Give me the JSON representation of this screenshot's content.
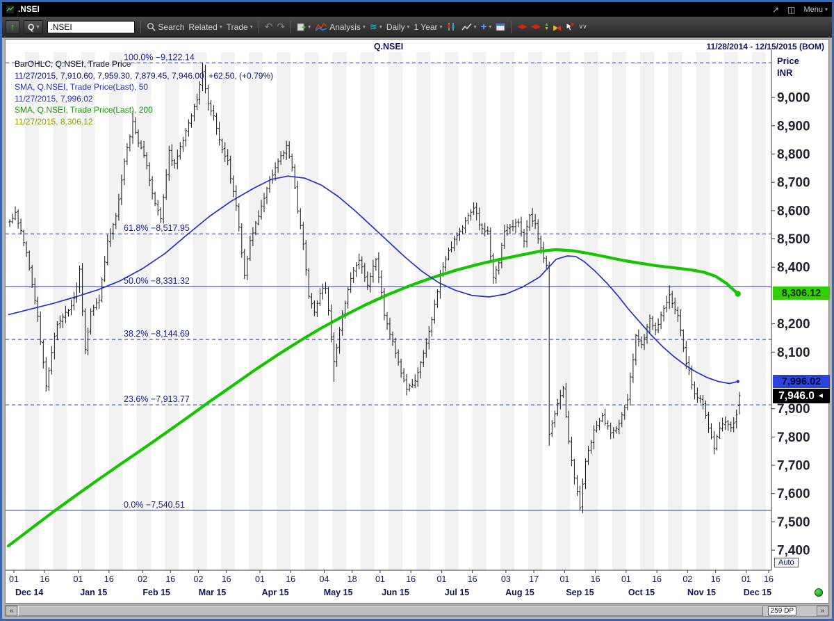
{
  "window": {
    "title": ".NSEI",
    "menu_label": "Menu"
  },
  "toolbar": {
    "quote_type": "Q",
    "symbol_value": ".NSEI",
    "search_label": "Search",
    "related_label": "Related",
    "trade_label": "Trade",
    "analysis_label": "Analysis",
    "interval_value": "Daily",
    "range_value": "1 Year"
  },
  "chart_header": {
    "symbol": "Q.NSEI",
    "date_range": "11/28/2014 - 12/15/2015 (BOM)"
  },
  "legend": [
    {
      "text": "BarOHLC, Q.NSEI, Trade Price",
      "color": "#101010"
    },
    {
      "text": "11/27/2015, 7,910.60, 7,959.30, 7,879.45, 7,946.00, +62.50, (+0.79%)",
      "color": "#10107a"
    },
    {
      "text": "SMA, Q.NSEI, Trade Price(Last), 50",
      "color": "#2431c8"
    },
    {
      "text": "11/27/2015, 7,996.02",
      "color": "#2431c8"
    },
    {
      "text": "SMA, Q.NSEI, Trade Price(Last), 200",
      "color": "#0fa000"
    },
    {
      "text": "11/27/2015, 8,306.12",
      "color": "#8f9c00"
    }
  ],
  "price_axis": {
    "title": "Price",
    "currency": "INR",
    "auto_label": "Auto",
    "ticks": [
      {
        "label": "9,000",
        "p": 9000
      },
      {
        "label": "8,900",
        "p": 8900
      },
      {
        "label": "8,800",
        "p": 8800
      },
      {
        "label": "8,700",
        "p": 8700
      },
      {
        "label": "8,600",
        "p": 8600
      },
      {
        "label": "8,500",
        "p": 8500
      },
      {
        "label": "8,400",
        "p": 8400
      },
      {
        "label": "8,200",
        "p": 8200
      },
      {
        "label": "8,100",
        "p": 8100
      },
      {
        "label": "7,900",
        "p": 7900
      },
      {
        "label": "7,800",
        "p": 7800
      },
      {
        "label": "7,700",
        "p": 7700
      },
      {
        "label": "7,600",
        "p": 7600
      },
      {
        "label": "7,500",
        "p": 7500
      },
      {
        "label": "7,400",
        "p": 7400
      }
    ],
    "boxes": [
      {
        "value": "8,306.12",
        "p": 8306.12,
        "bg": "#35cc0a",
        "fg": "#06300a"
      },
      {
        "value": "7,996.02",
        "p": 7996.02,
        "bg": "#2c42dd",
        "fg": "#000a30"
      },
      {
        "value": "7,946.0",
        "p": 7946.0,
        "bg": "#000000",
        "fg": "#ffffff",
        "arrow": "◄"
      }
    ]
  },
  "x_axis": {
    "ticks": [
      {
        "label": "01",
        "d": 2
      },
      {
        "label": "16",
        "d": 13
      },
      {
        "label": "01",
        "d": 25
      },
      {
        "label": "16",
        "d": 36
      },
      {
        "label": "02",
        "d": 48
      },
      {
        "label": "16",
        "d": 58
      },
      {
        "label": "02",
        "d": 68
      },
      {
        "label": "16",
        "d": 78
      },
      {
        "label": "01",
        "d": 90
      },
      {
        "label": "16",
        "d": 101
      },
      {
        "label": "04",
        "d": 113
      },
      {
        "label": "18",
        "d": 123
      },
      {
        "label": "01",
        "d": 133
      },
      {
        "label": "16",
        "d": 144
      },
      {
        "label": "01",
        "d": 155
      },
      {
        "label": "16",
        "d": 166
      },
      {
        "label": "03",
        "d": 178
      },
      {
        "label": "17",
        "d": 188
      },
      {
        "label": "01",
        "d": 199
      },
      {
        "label": "16",
        "d": 210
      },
      {
        "label": "01",
        "d": 221
      },
      {
        "label": "16",
        "d": 232
      },
      {
        "label": "02",
        "d": 243
      },
      {
        "label": "16",
        "d": 253
      },
      {
        "label": "01",
        "d": 264
      },
      {
        "label": "16",
        "d": 272
      }
    ],
    "months": [
      {
        "label": "Dec 14",
        "d": 7.5
      },
      {
        "label": "Jan 15",
        "d": 30.5
      },
      {
        "label": "Feb 15",
        "d": 53
      },
      {
        "label": "Mar 15",
        "d": 73
      },
      {
        "label": "Apr 15",
        "d": 95.5
      },
      {
        "label": "May 15",
        "d": 118
      },
      {
        "label": "Jun 15",
        "d": 138.5
      },
      {
        "label": "Jul 15",
        "d": 160.5
      },
      {
        "label": "Aug 15",
        "d": 183
      },
      {
        "label": "Sep 15",
        "d": 204.5
      },
      {
        "label": "Oct 15",
        "d": 226.5
      },
      {
        "label": "Nov 15",
        "d": 248
      },
      {
        "label": "Dec 15",
        "d": 268
      }
    ]
  },
  "scrollbar": {
    "dp_label": "259 DP"
  },
  "chart_data": {
    "type": "ohlc",
    "symbol": "Q.NSEI",
    "x_range": "11/28/2014 - 12/15/2015",
    "ylim": [
      7329,
      9160
    ],
    "x_days": 273,
    "bar_days": 261,
    "last_bar": {
      "date": "11/27/2015",
      "open": 7910.6,
      "high": 7959.3,
      "low": 7879.45,
      "close": 7946.0,
      "change": 62.5,
      "change_pct": 0.79
    },
    "fib_levels": [
      {
        "display": "100.0% −9,122.14",
        "pct": 100.0,
        "price": 9122.14,
        "style": "dashed"
      },
      {
        "display": "61.8% −8,517.95",
        "pct": 61.8,
        "price": 8517.95,
        "style": "dashed"
      },
      {
        "display": "50.0% −8,331.32",
        "pct": 50.0,
        "price": 8331.32,
        "style": "solid"
      },
      {
        "display": "38.2% −8,144.69",
        "pct": 38.2,
        "price": 8144.69,
        "style": "dashed"
      },
      {
        "display": "23.6% −7,913.77",
        "pct": 23.6,
        "price": 7913.77,
        "style": "dashed"
      },
      {
        "display": "0.0%  −7,540.51",
        "pct": 0.0,
        "price": 7540.51,
        "style": "solid"
      }
    ],
    "close_anchors": [
      [
        0,
        8560
      ],
      [
        2,
        8588
      ],
      [
        4,
        8530
      ],
      [
        6,
        8445
      ],
      [
        8,
        8340
      ],
      [
        10,
        8220
      ],
      [
        13,
        7985
      ],
      [
        15,
        8095
      ],
      [
        17,
        8200
      ],
      [
        20,
        8240
      ],
      [
        23,
        8282
      ],
      [
        25,
        8395
      ],
      [
        27,
        8102
      ],
      [
        29,
        8240
      ],
      [
        32,
        8285
      ],
      [
        35,
        8494
      ],
      [
        38,
        8580
      ],
      [
        41,
        8780
      ],
      [
        44,
        8910
      ],
      [
        46,
        8835
      ],
      [
        48,
        8797
      ],
      [
        51,
        8660
      ],
      [
        54,
        8565
      ],
      [
        57,
        8805
      ],
      [
        59,
        8760
      ],
      [
        62,
        8850
      ],
      [
        65,
        8940
      ],
      [
        67,
        8996
      ],
      [
        69,
        9085
      ],
      [
        71,
        8970
      ],
      [
        73,
        8938
      ],
      [
        75,
        8850
      ],
      [
        78,
        8770
      ],
      [
        81,
        8620
      ],
      [
        84,
        8366
      ],
      [
        86,
        8491
      ],
      [
        89,
        8586
      ],
      [
        93,
        8710
      ],
      [
        96,
        8780
      ],
      [
        99,
        8825
      ],
      [
        101,
        8750
      ],
      [
        103,
        8600
      ],
      [
        105,
        8480
      ],
      [
        107,
        8300
      ],
      [
        109,
        8235
      ],
      [
        111,
        8305
      ],
      [
        113,
        8331
      ],
      [
        116,
        8060
      ],
      [
        119,
        8235
      ],
      [
        122,
        8365
      ],
      [
        125,
        8421
      ],
      [
        128,
        8339
      ],
      [
        131,
        8434
      ],
      [
        134,
        8237
      ],
      [
        137,
        8131
      ],
      [
        140,
        8025
      ],
      [
        142,
        7970
      ],
      [
        145,
        8000
      ],
      [
        148,
        8095
      ],
      [
        151,
        8220
      ],
      [
        154,
        8369
      ],
      [
        157,
        8453
      ],
      [
        160,
        8510
      ],
      [
        163,
        8560
      ],
      [
        166,
        8608
      ],
      [
        169,
        8529
      ],
      [
        171,
        8521
      ],
      [
        173,
        8361
      ],
      [
        175,
        8421
      ],
      [
        177,
        8533
      ],
      [
        180,
        8540
      ],
      [
        182,
        8560
      ],
      [
        184,
        8495
      ],
      [
        186,
        8590
      ],
      [
        188,
        8545
      ],
      [
        190,
        8470
      ],
      [
        192,
        8400
      ],
      [
        193,
        7809
      ],
      [
        195,
        7881
      ],
      [
        197,
        7948
      ],
      [
        198,
        7971
      ],
      [
        200,
        7786
      ],
      [
        202,
        7655
      ],
      [
        204,
        7558
      ],
      [
        206,
        7720
      ],
      [
        209,
        7820
      ],
      [
        212,
        7870
      ],
      [
        215,
        7812
      ],
      [
        218,
        7843
      ],
      [
        221,
        7930
      ],
      [
        224,
        8152
      ],
      [
        226,
        8120
      ],
      [
        229,
        8220
      ],
      [
        231,
        8179
      ],
      [
        234,
        8250
      ],
      [
        236,
        8295
      ],
      [
        239,
        8232
      ],
      [
        242,
        8065
      ],
      [
        245,
        7955
      ],
      [
        248,
        7915
      ],
      [
        250,
        7830
      ],
      [
        252,
        7762
      ],
      [
        254,
        7837
      ],
      [
        256,
        7857
      ],
      [
        258,
        7832
      ],
      [
        260,
        7883
      ],
      [
        261,
        7946
      ]
    ],
    "pins": [
      {
        "d": 13,
        "low": 7961.0
      },
      {
        "d": 44,
        "high": 8952.0
      },
      {
        "d": 69,
        "high": 9122.14
      },
      {
        "d": 116,
        "low": 7995.0
      },
      {
        "d": 193,
        "low": 7769.0
      },
      {
        "d": 204,
        "low": 7540.51
      },
      {
        "d": 236,
        "high": 8336.3
      }
    ],
    "sma50": {
      "period": 50,
      "last": 7996.02,
      "color": "#2431c8",
      "points": [
        [
          0,
          8232
        ],
        [
          8,
          8252
        ],
        [
          16,
          8272
        ],
        [
          24,
          8295
        ],
        [
          32,
          8320
        ],
        [
          40,
          8352
        ],
        [
          48,
          8395
        ],
        [
          56,
          8448
        ],
        [
          64,
          8515
        ],
        [
          72,
          8580
        ],
        [
          80,
          8635
        ],
        [
          88,
          8680
        ],
        [
          94,
          8710
        ],
        [
          100,
          8722
        ],
        [
          106,
          8715
        ],
        [
          112,
          8690
        ],
        [
          118,
          8650
        ],
        [
          124,
          8600
        ],
        [
          130,
          8545
        ],
        [
          136,
          8490
        ],
        [
          142,
          8435
        ],
        [
          148,
          8385
        ],
        [
          154,
          8345
        ],
        [
          160,
          8318
        ],
        [
          166,
          8300
        ],
        [
          172,
          8295
        ],
        [
          178,
          8305
        ],
        [
          184,
          8330
        ],
        [
          190,
          8365
        ],
        [
          196,
          8428
        ],
        [
          200,
          8440
        ],
        [
          203,
          8438
        ],
        [
          206,
          8420
        ],
        [
          210,
          8385
        ],
        [
          214,
          8345
        ],
        [
          218,
          8300
        ],
        [
          222,
          8250
        ],
        [
          226,
          8205
        ],
        [
          230,
          8160
        ],
        [
          234,
          8120
        ],
        [
          238,
          8085
        ],
        [
          242,
          8055
        ],
        [
          246,
          8030
        ],
        [
          250,
          8010
        ],
        [
          254,
          7996
        ],
        [
          258,
          7989
        ],
        [
          261,
          7996
        ]
      ]
    },
    "sma200": {
      "period": 200,
      "last": 8306.12,
      "color": "#17c400",
      "points": [
        [
          0,
          7415
        ],
        [
          8,
          7475
        ],
        [
          16,
          7535
        ],
        [
          24,
          7592
        ],
        [
          32,
          7648
        ],
        [
          40,
          7703
        ],
        [
          48,
          7757
        ],
        [
          56,
          7812
        ],
        [
          64,
          7868
        ],
        [
          72,
          7925
        ],
        [
          80,
          7980
        ],
        [
          88,
          8035
        ],
        [
          96,
          8088
        ],
        [
          104,
          8138
        ],
        [
          112,
          8185
        ],
        [
          120,
          8228
        ],
        [
          128,
          8268
        ],
        [
          136,
          8304
        ],
        [
          144,
          8336
        ],
        [
          152,
          8364
        ],
        [
          160,
          8389
        ],
        [
          168,
          8410
        ],
        [
          176,
          8428
        ],
        [
          184,
          8444
        ],
        [
          190,
          8456
        ],
        [
          196,
          8462
        ],
        [
          202,
          8458
        ],
        [
          208,
          8448
        ],
        [
          214,
          8436
        ],
        [
          220,
          8424
        ],
        [
          226,
          8414
        ],
        [
          232,
          8405
        ],
        [
          238,
          8398
        ],
        [
          244,
          8391
        ],
        [
          249,
          8382
        ],
        [
          253,
          8368
        ],
        [
          257,
          8342
        ],
        [
          261,
          8306
        ]
      ]
    }
  }
}
